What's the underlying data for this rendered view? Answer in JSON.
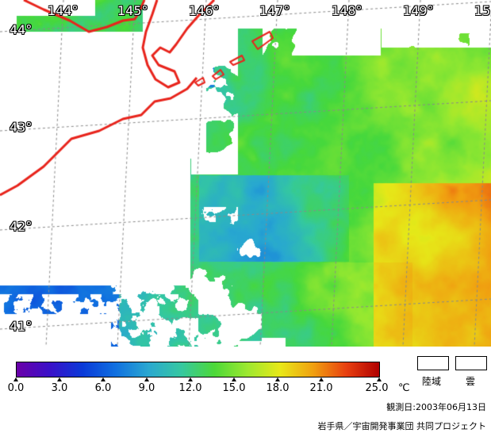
{
  "map": {
    "lon_labels": [
      "144°",
      "145°",
      "146°",
      "147°",
      "148°",
      "149°",
      "15"
    ],
    "lat_labels": [
      "44°",
      "43°",
      "42°",
      "41°"
    ],
    "colors": {
      "coastline": "#e8241c",
      "grid": "#8a8a8a",
      "land_cloud": "#ffffff"
    }
  },
  "colorbar": {
    "ticks": [
      "0.0",
      "3.0",
      "6.0",
      "9.0",
      "12.0",
      "15.0",
      "18.0",
      "21.0",
      "25.0"
    ],
    "unit": "℃",
    "stops": [
      "#6a00a8",
      "#3a10c8",
      "#0a3ad8",
      "#1070e0",
      "#2aa8d0",
      "#36c8a0",
      "#4cd838",
      "#9ce830",
      "#e8e818",
      "#f0a010",
      "#e84010",
      "#b00000"
    ]
  },
  "legend": {
    "land_label": "陸域",
    "cloud_label": "雲"
  },
  "observation": "観測日:2003年06月13日",
  "credit": "岩手県／宇宙開発事業団 共同プロジェクト"
}
